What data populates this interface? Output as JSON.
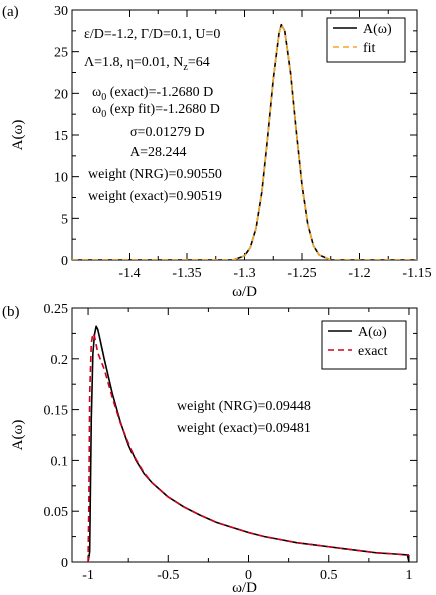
{
  "chart_data": [
    {
      "panel_label": "(a)",
      "type": "line",
      "xlabel": "ω/D",
      "ylabel": "A(ω)",
      "xlim": [
        -1.45,
        -1.15
      ],
      "ylim": [
        0,
        30
      ],
      "xticks": [
        -1.4,
        -1.35,
        -1.3,
        -1.25,
        -1.2,
        -1.15
      ],
      "xtick_labels": [
        "-1.4",
        "-1.35",
        "-1.3",
        "-1.25",
        "-1.2",
        "-1.15"
      ],
      "yticks": [
        0,
        5,
        10,
        15,
        20,
        25,
        30
      ],
      "ytick_labels": [
        "0",
        "5",
        "10",
        "15",
        "20",
        "25",
        "30"
      ],
      "grid": false,
      "legend_position": "top-right",
      "series": [
        {
          "name": "A(ω)",
          "color": "#000000",
          "style": "solid",
          "x": [
            -1.45,
            -1.31,
            -1.3,
            -1.295,
            -1.29,
            -1.285,
            -1.28,
            -1.275,
            -1.27,
            -1.268,
            -1.265,
            -1.26,
            -1.255,
            -1.25,
            -1.245,
            -1.24,
            -1.235,
            -1.225,
            -1.15
          ],
          "y": [
            0,
            0,
            0.5,
            1.5,
            3.8,
            8.1,
            14.6,
            21.7,
            27.2,
            28.24,
            27.5,
            22.5,
            15.5,
            9.0,
            4.3,
            1.7,
            0.6,
            0.0,
            0
          ]
        },
        {
          "name": "fit",
          "color": "#f5a623",
          "style": "dashed",
          "x": [
            -1.45,
            -1.31,
            -1.3,
            -1.295,
            -1.29,
            -1.285,
            -1.28,
            -1.275,
            -1.27,
            -1.268,
            -1.265,
            -1.26,
            -1.255,
            -1.25,
            -1.245,
            -1.24,
            -1.235,
            -1.225,
            -1.15
          ],
          "y": [
            0,
            0,
            0.5,
            1.5,
            3.8,
            8.1,
            14.6,
            21.7,
            27.2,
            28.24,
            27.5,
            22.5,
            15.5,
            9.0,
            4.3,
            1.7,
            0.6,
            0.0,
            0
          ]
        }
      ],
      "annotations": [
        "ε/D=-1.2, Γ/D=0.1, U=0",
        "Λ=1.8, η=0.01, N_z=64",
        "ω_0 (exact)=-1.2680 D",
        "ω_0 (exp fit)=-1.2680 D",
        "σ=0.01279 D",
        "A=28.244",
        "weight (NRG)=0.90550",
        "weight (exact)=0.90519"
      ]
    },
    {
      "panel_label": "(b)",
      "type": "line",
      "xlabel": "ω/D",
      "ylabel": "A(ω)",
      "xlim": [
        -1.1,
        1.05
      ],
      "ylim": [
        0,
        0.25
      ],
      "xticks": [
        -1,
        -0.5,
        0,
        0.5,
        1
      ],
      "xtick_labels": [
        "-1",
        "-0.5",
        "0",
        "0.5",
        "1"
      ],
      "yticks": [
        0,
        0.05,
        0.1,
        0.15,
        0.2,
        0.25
      ],
      "ytick_labels": [
        "0",
        "0.05",
        "0.1",
        "0.15",
        "0.2",
        "0.25"
      ],
      "grid": false,
      "legend_position": "top-right",
      "series": [
        {
          "name": "A(ω)",
          "color": "#000000",
          "style": "solid",
          "x": [
            -1.0,
            -0.99,
            -0.98,
            -0.97,
            -0.96,
            -0.95,
            -0.94,
            -0.93,
            -0.9,
            -0.85,
            -0.8,
            -0.77,
            -0.75,
            -0.73,
            -0.72,
            -0.7,
            -0.65,
            -0.6,
            -0.5,
            -0.4,
            -0.3,
            -0.2,
            -0.1,
            0.0,
            0.1,
            0.2,
            0.3,
            0.4,
            0.5,
            0.6,
            0.7,
            0.8,
            0.9,
            0.99,
            1.0
          ],
          "y": [
            0.0,
            0.01,
            0.14,
            0.205,
            0.224,
            0.232,
            0.229,
            0.222,
            0.2,
            0.166,
            0.138,
            0.124,
            0.115,
            0.108,
            0.107,
            0.1,
            0.087,
            0.078,
            0.064,
            0.054,
            0.046,
            0.039,
            0.034,
            0.029,
            0.025,
            0.022,
            0.019,
            0.017,
            0.015,
            0.013,
            0.011,
            0.009,
            0.008,
            0.007,
            0.0
          ]
        },
        {
          "name": "exact",
          "color": "#d0021b",
          "style": "dashed",
          "x": [
            -1.0,
            -0.995,
            -0.99,
            -0.98,
            -0.97,
            -0.96,
            -0.95,
            -0.94,
            -0.9,
            -0.85,
            -0.8,
            -0.75,
            -0.7,
            -0.65,
            -0.6,
            -0.5,
            -0.4,
            -0.3,
            -0.2,
            -0.1,
            0.0,
            0.1,
            0.2,
            0.3,
            0.4,
            0.5,
            0.6,
            0.7,
            0.8,
            0.9,
            1.0
          ],
          "y": [
            0.0,
            0.06,
            0.165,
            0.215,
            0.225,
            0.222,
            0.214,
            0.206,
            0.19,
            0.162,
            0.137,
            0.117,
            0.101,
            0.088,
            0.078,
            0.064,
            0.054,
            0.046,
            0.039,
            0.034,
            0.029,
            0.025,
            0.022,
            0.019,
            0.017,
            0.015,
            0.013,
            0.011,
            0.009,
            0.008,
            0.007
          ]
        }
      ],
      "annotations": [
        "weight (NRG)=0.09448",
        "weight (exact)=0.09481"
      ]
    }
  ]
}
